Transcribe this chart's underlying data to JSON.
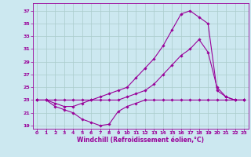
{
  "background_color": "#cce8f0",
  "grid_color": "#aacccc",
  "line_color": "#990099",
  "marker_color": "#990099",
  "xlabel": "Windchill (Refroidissement éolien,°C)",
  "xlabel_fontsize": 5.5,
  "ytick_values": [
    19,
    21,
    23,
    25,
    27,
    29,
    31,
    33,
    35,
    37
  ],
  "xtick_values": [
    0,
    1,
    2,
    3,
    4,
    5,
    6,
    7,
    8,
    9,
    10,
    11,
    12,
    13,
    14,
    15,
    16,
    17,
    18,
    19,
    20,
    21,
    22,
    23
  ],
  "xlim": [
    -0.5,
    23.5
  ],
  "ylim": [
    18.5,
    38.2
  ],
  "series": [
    {
      "x": [
        0,
        1,
        2,
        3,
        4,
        5,
        6,
        7,
        8,
        9,
        10,
        11,
        12,
        13,
        14,
        15,
        16,
        17,
        18,
        19,
        20,
        21,
        22,
        23
      ],
      "y": [
        23,
        23,
        22,
        21.5,
        21,
        20,
        19.5,
        19,
        19.2,
        21.2,
        22,
        22.5,
        23,
        23,
        23,
        23,
        23,
        23,
        23,
        23,
        23,
        23,
        23,
        23
      ]
    },
    {
      "x": [
        0,
        1,
        2,
        3,
        4,
        5,
        6,
        7,
        8,
        9,
        10,
        11,
        12,
        13,
        14,
        15,
        16,
        17,
        18,
        19,
        20,
        21,
        22,
        23
      ],
      "y": [
        23,
        23,
        23,
        23,
        23,
        23,
        23,
        23,
        23,
        23,
        23.5,
        24,
        24.5,
        25.5,
        27,
        28.5,
        30,
        31,
        32.5,
        30.5,
        25,
        23.5,
        23,
        23
      ]
    },
    {
      "x": [
        0,
        1,
        2,
        3,
        4,
        5,
        6,
        7,
        8,
        9,
        10,
        11,
        12,
        13,
        14,
        15,
        16,
        17,
        18,
        19,
        20,
        21,
        22,
        23
      ],
      "y": [
        23,
        23,
        22.5,
        22,
        22,
        22.5,
        23,
        23.5,
        24,
        24.5,
        25,
        26.5,
        28,
        29.5,
        31.5,
        34,
        36.5,
        37,
        36,
        35,
        24.5,
        23.5,
        23,
        23
      ]
    }
  ]
}
